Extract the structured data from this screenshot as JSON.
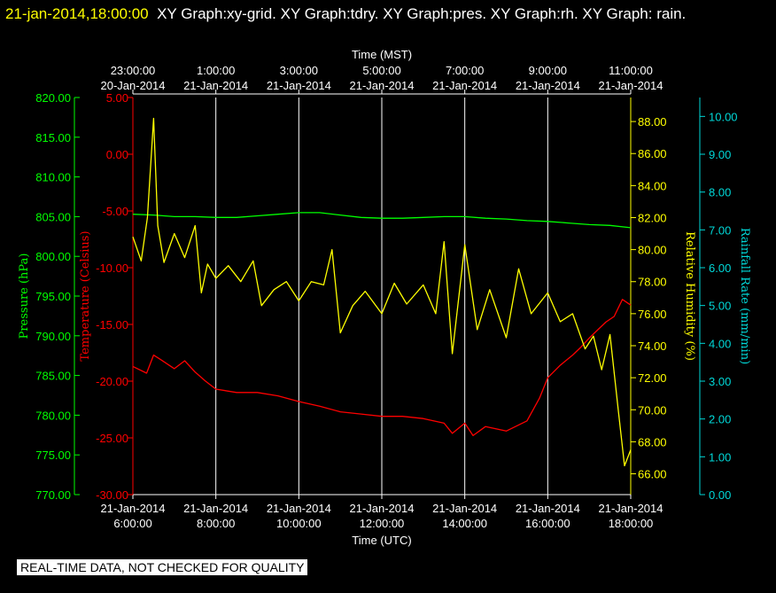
{
  "header": {
    "timestamp": "21-jan-2014,18:00:00",
    "titles": "XY Graph:xy-grid.  XY Graph:tdry.  XY Graph:pres.  XY Graph:rh.  XY Graph: rain."
  },
  "footer": {
    "notice": "REAL-TIME DATA, NOT CHECKED FOR QUALITY"
  },
  "colors": {
    "background": "#000000",
    "grid": "#ffffff",
    "temperature": "#ff0000",
    "pressure": "#00ff00",
    "humidity": "#ffff00",
    "rain": "#00d8d8"
  },
  "chart_data": {
    "type": "line",
    "grid": true,
    "top_axis": {
      "label": "Time (MST)",
      "ticks": [
        {
          "hour": 6,
          "time": "23:00:00",
          "date": "20-Jan-2014"
        },
        {
          "hour": 8,
          "time": "1:00:00",
          "date": "21-Jan-2014"
        },
        {
          "hour": 10,
          "time": "3:00:00",
          "date": "21-Jan-2014"
        },
        {
          "hour": 12,
          "time": "5:00:00",
          "date": "21-Jan-2014"
        },
        {
          "hour": 14,
          "time": "7:00:00",
          "date": "21-Jan-2014"
        },
        {
          "hour": 16,
          "time": "9:00:00",
          "date": "21-Jan-2014"
        },
        {
          "hour": 18,
          "time": "11:00:00",
          "date": "21-Jan-2014"
        }
      ]
    },
    "bottom_axis": {
      "label": "Time (UTC)",
      "range": [
        6,
        18
      ],
      "ticks": [
        {
          "hour": 6,
          "date": "21-Jan-2014",
          "time": "6:00:00"
        },
        {
          "hour": 8,
          "date": "21-Jan-2014",
          "time": "8:00:00"
        },
        {
          "hour": 10,
          "date": "21-Jan-2014",
          "time": "10:00:00"
        },
        {
          "hour": 12,
          "date": "21-Jan-2014",
          "time": "12:00:00"
        },
        {
          "hour": 14,
          "date": "21-Jan-2014",
          "time": "14:00:00"
        },
        {
          "hour": 16,
          "date": "21-Jan-2014",
          "time": "16:00:00"
        },
        {
          "hour": 18,
          "date": "21-Jan-2014",
          "time": "18:00:00"
        }
      ]
    },
    "y_axes": {
      "pressure": {
        "label": "Pressure (hPa)",
        "range": [
          770,
          820
        ],
        "ticks": [
          770,
          775,
          780,
          785,
          790,
          795,
          800,
          805,
          810,
          815,
          820
        ]
      },
      "temperature": {
        "label": "Temperature (Celsius)",
        "range": [
          -30,
          5
        ],
        "ticks": [
          -30,
          -25,
          -20,
          -15,
          -10,
          -5,
          0,
          5
        ]
      },
      "humidity": {
        "label": "Relative Humidity (%)",
        "range": [
          64.7,
          89.5
        ],
        "ticks": [
          66,
          68,
          70,
          72,
          74,
          76,
          78,
          80,
          82,
          84,
          86,
          88
        ]
      },
      "rain": {
        "label": "Rainfall Rate (mm/min)",
        "range": [
          0,
          10.5
        ],
        "ticks": [
          0,
          1,
          2,
          3,
          4,
          5,
          6,
          7,
          8,
          9,
          10
        ]
      }
    },
    "series": [
      {
        "key": "pressure",
        "name": "pres",
        "x": [
          6.0,
          6.5,
          7.0,
          7.5,
          8.0,
          8.5,
          9.0,
          9.5,
          10.0,
          10.5,
          11.0,
          11.5,
          12.0,
          12.5,
          13.0,
          13.5,
          14.0,
          14.5,
          15.0,
          15.5,
          16.0,
          16.5,
          17.0,
          17.5,
          18.0
        ],
        "y": [
          805.3,
          805.2,
          805.0,
          805.0,
          804.9,
          804.9,
          805.1,
          805.3,
          805.5,
          805.5,
          805.2,
          804.9,
          804.8,
          804.8,
          804.9,
          805.0,
          805.0,
          804.8,
          804.7,
          804.5,
          804.4,
          804.2,
          804.0,
          803.9,
          803.6
        ]
      },
      {
        "key": "temperature",
        "name": "tdry",
        "x": [
          6.0,
          6.33,
          6.5,
          6.67,
          7.0,
          7.25,
          7.5,
          7.75,
          8.0,
          8.5,
          9.0,
          9.5,
          10.0,
          10.5,
          11.0,
          11.5,
          12.0,
          12.5,
          13.0,
          13.5,
          13.7,
          14.0,
          14.2,
          14.5,
          15.0,
          15.5,
          15.8,
          16.0,
          16.3,
          16.6,
          16.8,
          17.0,
          17.2,
          17.4,
          17.6,
          17.8,
          18.0
        ],
        "y": [
          -18.7,
          -19.3,
          -17.7,
          -18.1,
          -18.9,
          -18.2,
          -19.2,
          -20.0,
          -20.7,
          -21.0,
          -21.0,
          -21.3,
          -21.8,
          -22.2,
          -22.7,
          -22.9,
          -23.1,
          -23.1,
          -23.3,
          -23.7,
          -24.6,
          -23.7,
          -24.8,
          -24.0,
          -24.4,
          -23.5,
          -21.5,
          -19.7,
          -18.6,
          -17.7,
          -17.0,
          -16.2,
          -15.5,
          -14.8,
          -14.3,
          -12.8,
          -13.3
        ]
      },
      {
        "key": "humidity",
        "name": "rh",
        "x": [
          6.0,
          6.2,
          6.35,
          6.5,
          6.6,
          6.75,
          7.0,
          7.25,
          7.5,
          7.65,
          7.8,
          8.0,
          8.3,
          8.6,
          8.9,
          9.1,
          9.4,
          9.7,
          10.0,
          10.3,
          10.6,
          10.8,
          11.0,
          11.3,
          11.6,
          12.0,
          12.3,
          12.6,
          13.0,
          13.3,
          13.5,
          13.7,
          14.0,
          14.3,
          14.6,
          15.0,
          15.3,
          15.6,
          16.0,
          16.3,
          16.6,
          16.9,
          17.1,
          17.3,
          17.5,
          17.7,
          17.85,
          18.0
        ],
        "y": [
          80.8,
          79.3,
          82.0,
          88.2,
          81.5,
          79.2,
          81.0,
          79.5,
          81.5,
          77.3,
          79.1,
          78.2,
          79.0,
          78.0,
          79.3,
          76.5,
          77.5,
          78.0,
          76.8,
          78.0,
          77.8,
          80.0,
          74.8,
          76.5,
          77.4,
          76.0,
          77.9,
          76.6,
          77.8,
          76.0,
          80.5,
          73.5,
          80.3,
          75.0,
          77.5,
          74.5,
          78.8,
          76.0,
          77.3,
          75.5,
          76.0,
          73.8,
          74.6,
          72.5,
          74.7,
          70.0,
          66.5,
          67.5
        ]
      },
      {
        "key": "rain",
        "name": "rain",
        "x": [],
        "y": []
      }
    ]
  }
}
